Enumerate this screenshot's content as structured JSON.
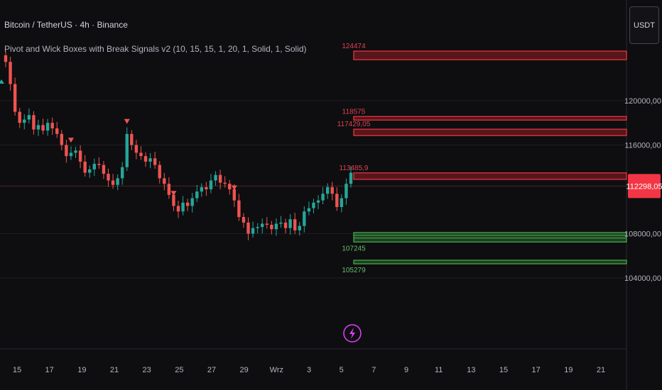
{
  "header": {
    "symbol_line": "Bitcoin / TetherUS · 4h · Binance",
    "indicator_line": "Pivot and Wick Boxes with Break Signals v2 (10, 15, 15, 1, 20, 1, Solid, 1, Solid)"
  },
  "currency_button": "USDT",
  "colors": {
    "background": "#0e0e10",
    "up": "#26a69a",
    "down": "#ef5350",
    "resistance": "#f23645",
    "support": "#4caf50",
    "last_price_badge": "#f23645",
    "break_signal": "#e040fb"
  },
  "chart_data": {
    "type": "candlestick",
    "y_axis": {
      "ticks": [
        {
          "value": 120000,
          "label": "120000,00"
        },
        {
          "value": 116000,
          "label": "116000,00"
        },
        {
          "value": 108000,
          "label": "108000,00"
        },
        {
          "value": 104000,
          "label": "104000,00"
        }
      ],
      "last_price": {
        "value": 112298.05,
        "label": "112298,05"
      }
    },
    "x_axis": {
      "ticks": [
        "15",
        "17",
        "19",
        "21",
        "23",
        "25",
        "27",
        "29",
        "Wrz",
        "3",
        "5",
        "7",
        "9",
        "11",
        "13",
        "15",
        "17",
        "19",
        "21"
      ]
    },
    "close_path": [
      [
        0,
        123500
      ],
      [
        1,
        121500
      ],
      [
        2,
        119000
      ],
      [
        3,
        118000
      ],
      [
        4,
        118300
      ],
      [
        5,
        118700
      ],
      [
        6,
        117400
      ],
      [
        7,
        117800
      ],
      [
        8,
        117300
      ],
      [
        9,
        118000
      ],
      [
        10,
        117500
      ],
      [
        11,
        117000
      ],
      [
        12,
        116000
      ],
      [
        13,
        115000
      ],
      [
        14,
        115300
      ],
      [
        15,
        115500
      ],
      [
        16,
        114500
      ],
      [
        17,
        113500
      ],
      [
        18,
        113800
      ],
      [
        19,
        114300
      ],
      [
        20,
        114200
      ],
      [
        21,
        113400
      ],
      [
        22,
        112800
      ],
      [
        23,
        112400
      ],
      [
        24,
        113000
      ],
      [
        25,
        114000
      ],
      [
        26,
        117000
      ],
      [
        27,
        116000
      ],
      [
        28,
        115300
      ],
      [
        29,
        115000
      ],
      [
        30,
        114500
      ],
      [
        31,
        114800
      ],
      [
        32,
        114200
      ],
      [
        33,
        113000
      ],
      [
        34,
        112500
      ],
      [
        35,
        111500
      ],
      [
        36,
        110500
      ],
      [
        37,
        110000
      ],
      [
        38,
        110800
      ],
      [
        39,
        110500
      ],
      [
        40,
        111200
      ],
      [
        41,
        111800
      ],
      [
        42,
        112200
      ],
      [
        43,
        112000
      ],
      [
        44,
        112800
      ],
      [
        45,
        113300
      ],
      [
        46,
        112600
      ],
      [
        47,
        112500
      ],
      [
        48,
        112000
      ],
      [
        49,
        111000
      ],
      [
        50,
        109500
      ],
      [
        51,
        109000
      ],
      [
        52,
        108000
      ],
      [
        53,
        108500
      ],
      [
        54,
        108600
      ],
      [
        55,
        108900
      ],
      [
        56,
        108800
      ],
      [
        57,
        108400
      ],
      [
        58,
        108900
      ],
      [
        59,
        109000
      ],
      [
        60,
        108500
      ],
      [
        61,
        109300
      ],
      [
        62,
        108300
      ],
      [
        63,
        108700
      ],
      [
        64,
        110000
      ],
      [
        65,
        110300
      ],
      [
        66,
        110800
      ],
      [
        67,
        111000
      ],
      [
        68,
        111600
      ],
      [
        69,
        112200
      ],
      [
        70,
        111600
      ],
      [
        71,
        110400
      ],
      [
        72,
        111200
      ],
      [
        73,
        112500
      ],
      [
        74,
        113500
      ]
    ],
    "down_signals": [
      14,
      26,
      36,
      49
    ],
    "resistance_boxes": [
      {
        "label": "124474",
        "top": 124474,
        "bottom": 123700
      },
      {
        "label": "118575",
        "top": 118575,
        "bottom": 118250
      },
      {
        "label": "117429,05",
        "top": 117429.05,
        "bottom": 116850
      },
      {
        "label": "113485,9",
        "top": 113485.9,
        "bottom": 112900
      }
    ],
    "support_boxes": [
      {
        "label": "107245",
        "top": 108100,
        "bottom": 107245
      },
      {
        "label": "105279",
        "top": 105600,
        "bottom": 105279
      }
    ]
  }
}
